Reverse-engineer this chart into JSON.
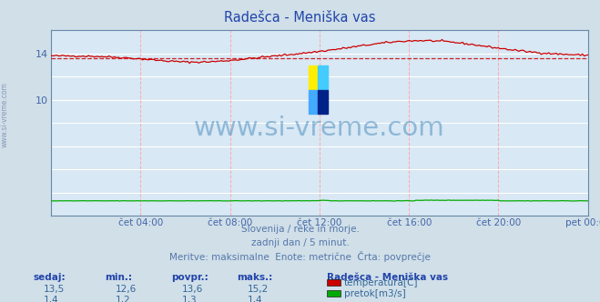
{
  "title": "Radešca - Meniška vas",
  "bg_color": "#d0dfe8",
  "plot_bg_color": "#d8e8f4",
  "grid_h_color": "#ffffff",
  "grid_v_color": "#ffaaaa",
  "ylabel_color": "#4466aa",
  "title_color": "#2244aa",
  "watermark_text": "www.si-vreme.com",
  "watermark_color": "#4488bb",
  "subtitle_lines": [
    "Slovenija / reke in morje.",
    "zadnji dan / 5 minut.",
    "Meritve: maksimalne  Enote: metrične  Črta: povprečje"
  ],
  "xlabel_ticks": [
    "čet 04:00",
    "čet 08:00",
    "čet 12:00",
    "čet 16:00",
    "čet 20:00",
    "pet 00:00"
  ],
  "xlabel_tick_frac": [
    0.1667,
    0.3333,
    0.5,
    0.6667,
    0.8333,
    1.0
  ],
  "ylim": [
    0,
    16
  ],
  "yticks": [
    10,
    14
  ],
  "temp_color": "#cc0000",
  "flow_color": "#00aa00",
  "avg_line_color": "#cc0000",
  "avg_line_value": 13.6,
  "legend_title": "Radešca - Meniška vas",
  "legend_items": [
    {
      "label": "temperatura[C]",
      "color": "#cc0000"
    },
    {
      "label": "pretok[m3/s]",
      "color": "#00aa00"
    }
  ],
  "table_headers": [
    "sedaj:",
    "min.:",
    "povpr.:",
    "maks.:"
  ],
  "table_rows": [
    [
      "13,5",
      "12,6",
      "13,6",
      "15,2"
    ],
    [
      "1,4",
      "1,2",
      "1,3",
      "1,4"
    ]
  ],
  "left_label": "www.si-vreme.com",
  "spine_color": "#6688aa"
}
